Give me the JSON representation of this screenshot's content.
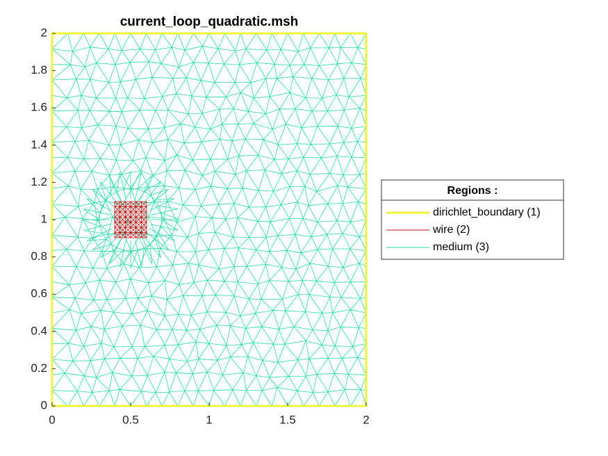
{
  "chart_data": {
    "type": "mesh",
    "title": "current_loop_quadratic.msh",
    "xlim": [
      0,
      2
    ],
    "xticks": [
      0,
      0.5,
      1,
      1.5,
      2
    ],
    "ylim": [
      0,
      2
    ],
    "yticks": [
      0,
      0.2,
      0.4,
      0.6,
      0.8,
      1,
      1.2,
      1.4,
      1.6,
      1.8,
      2
    ],
    "legend_title": "Regions :",
    "series": [
      {
        "name": "dirichlet_boundary (1)",
        "color": "#f2f23a"
      },
      {
        "name": "wire (2)",
        "color": "#c01010"
      },
      {
        "name": "medium (3)",
        "color": "#22d8a8"
      }
    ]
  }
}
